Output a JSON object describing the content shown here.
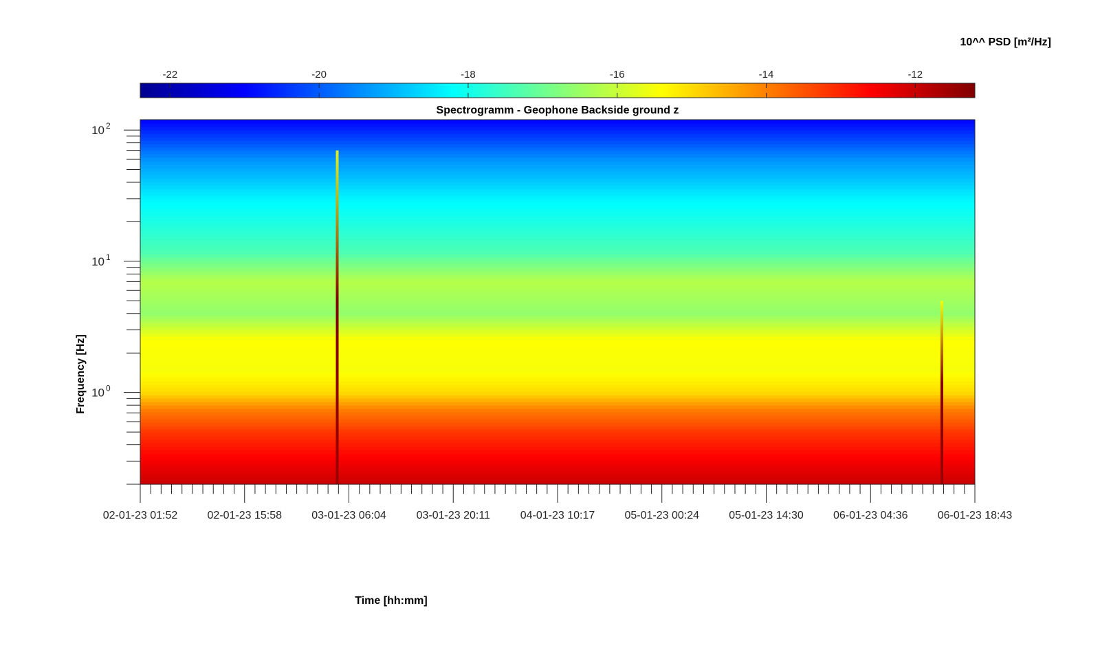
{
  "chart_data": {
    "type": "heatmap",
    "title": "Spectrogramm - Geophone Backside ground z",
    "xlabel": "Time [hh:mm]",
    "ylabel": "Frequency [Hz]",
    "x_tick_labels": [
      "02-01-23 01:52",
      "02-01-23 15:58",
      "03-01-23 06:04",
      "03-01-23 20:11",
      "04-01-23 10:17",
      "05-01-23 00:24",
      "05-01-23 14:30",
      "06-01-23 04:36",
      "06-01-23 18:43"
    ],
    "y_scale": "log",
    "ylim": [
      0.2,
      120
    ],
    "y_ticks": [
      {
        "value": 1,
        "base": "10",
        "exponent": "0"
      },
      {
        "value": 10,
        "base": "10",
        "exponent": "1"
      },
      {
        "value": 100,
        "base": "10",
        "exponent": "2"
      }
    ],
    "colorbar": {
      "label": "10^^ PSD [m²/Hz]",
      "range": [
        -22.4,
        -11.2
      ],
      "ticks": [
        -22,
        -20,
        -18,
        -16,
        -14,
        -12
      ],
      "tick_labels": [
        "-22",
        "-20",
        "-18",
        "-16",
        "-14",
        "-12"
      ],
      "colormap": "jet",
      "placement": "top"
    },
    "psd_profile": [
      {
        "freq": 0.2,
        "log_psd": -12.0
      },
      {
        "freq": 0.3,
        "log_psd": -12.5
      },
      {
        "freq": 0.5,
        "log_psd": -13.2
      },
      {
        "freq": 0.75,
        "log_psd": -14.0
      },
      {
        "freq": 1.0,
        "log_psd": -15.0
      },
      {
        "freq": 1.5,
        "log_psd": -15.5
      },
      {
        "freq": 2.5,
        "log_psd": -15.4
      },
      {
        "freq": 4.0,
        "log_psd": -16.6
      },
      {
        "freq": 7.0,
        "log_psd": -16.2
      },
      {
        "freq": 12.0,
        "log_psd": -17.4
      },
      {
        "freq": 30.0,
        "log_psd": -18.3
      },
      {
        "freq": 60.0,
        "log_psd": -19.4
      },
      {
        "freq": 100.0,
        "log_psd": -20.6
      },
      {
        "freq": 120.0,
        "log_psd": -21.0
      }
    ],
    "events": [
      {
        "time": "03-01-23 04:30",
        "max_freq": 70,
        "peak_log_psd": -11.5
      },
      {
        "time": "06-01-23 14:15",
        "max_freq": 5,
        "peak_log_psd": -11.5
      }
    ],
    "grid": false
  }
}
